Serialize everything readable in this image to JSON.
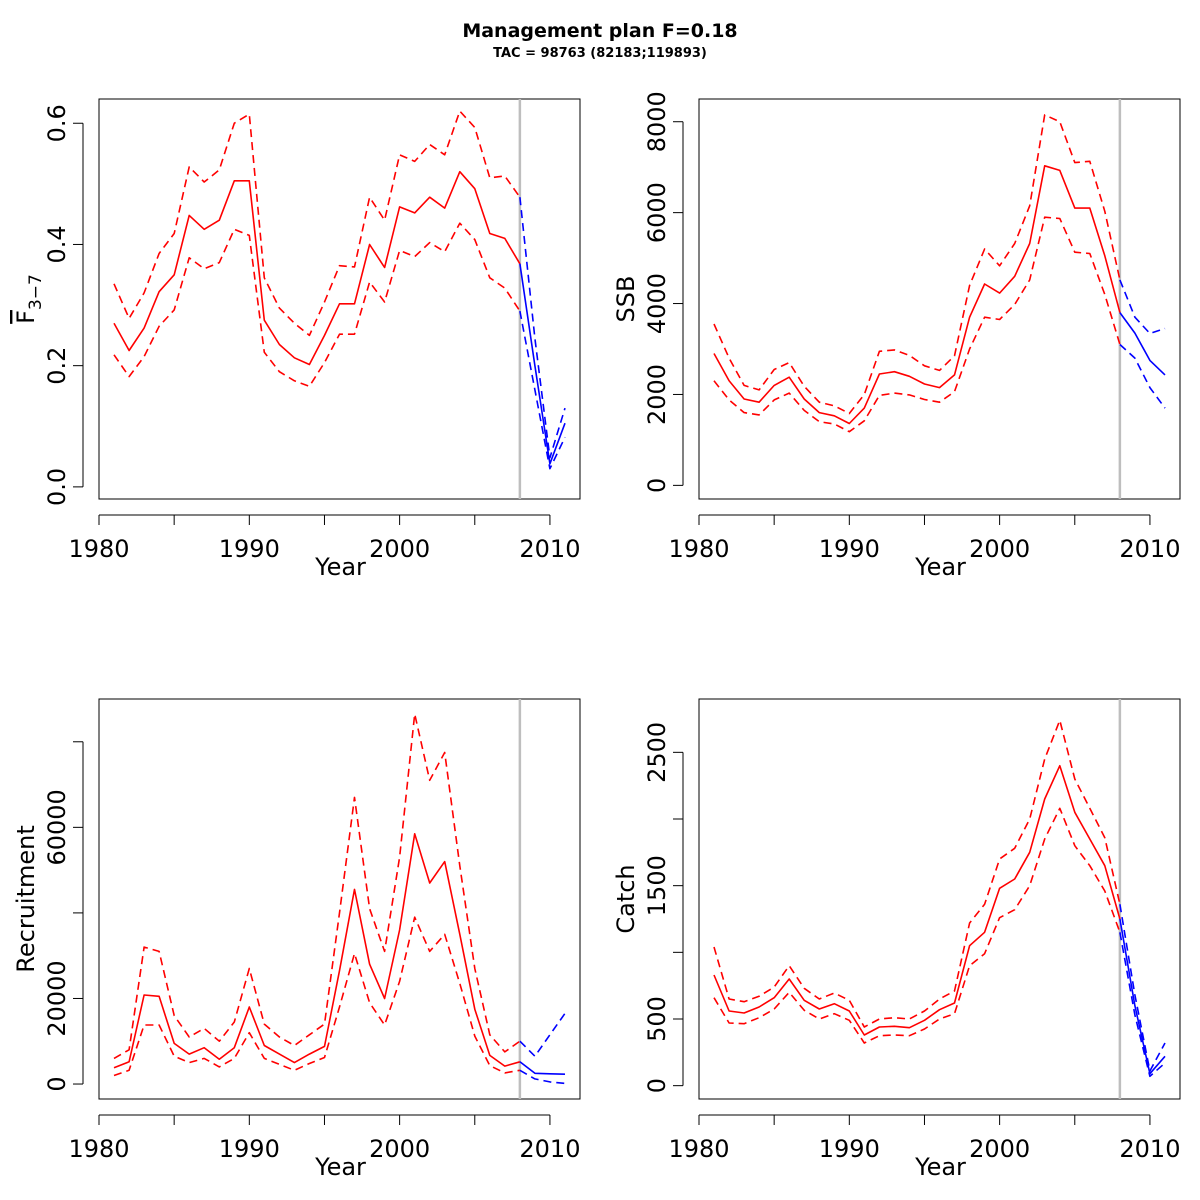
{
  "header": {
    "title": "Management plan F=0.18",
    "subtitle": "TAC = 98763 (82183;119893)"
  },
  "chart_data": [
    {
      "type": "line",
      "ylabel": "F",
      "ylabel_sub": "3−7",
      "xlabel": "Year",
      "xlim": [
        1980,
        2012
      ],
      "ylim": [
        -0.02,
        0.64
      ],
      "yticks": [
        0.0,
        0.2,
        0.4,
        0.6
      ],
      "ytick_labels": [
        "0.0",
        "0.2",
        "0.4",
        "0.6"
      ],
      "xticks": [
        1980,
        1990,
        2000,
        2010
      ],
      "xtick_labels": [
        "1980",
        "1990",
        "2000",
        "2010"
      ],
      "ref_year": 2008,
      "x": [
        1981,
        1982,
        1983,
        1984,
        1985,
        1986,
        1987,
        1988,
        1989,
        1990,
        1991,
        1992,
        1993,
        1994,
        1995,
        1996,
        1997,
        1998,
        1999,
        2000,
        2001,
        2002,
        2003,
        2004,
        2005,
        2006,
        2007,
        2008
      ],
      "series": [
        {
          "role": "estimate",
          "values": [
            0.27,
            0.225,
            0.262,
            0.322,
            0.35,
            0.448,
            0.425,
            0.44,
            0.505,
            0.505,
            0.275,
            0.235,
            0.213,
            0.202,
            0.25,
            0.302,
            0.302,
            0.4,
            0.362,
            0.462,
            0.452,
            0.478,
            0.46,
            0.52,
            0.492,
            0.418,
            0.41,
            0.368
          ]
        },
        {
          "role": "upper",
          "values": [
            0.335,
            0.278,
            0.32,
            0.385,
            0.418,
            0.528,
            0.503,
            0.523,
            0.6,
            0.615,
            0.345,
            0.295,
            0.27,
            0.25,
            0.305,
            0.365,
            0.363,
            0.478,
            0.44,
            0.548,
            0.537,
            0.565,
            0.548,
            0.62,
            0.593,
            0.51,
            0.513,
            0.478
          ]
        },
        {
          "role": "lower",
          "values": [
            0.218,
            0.182,
            0.215,
            0.265,
            0.292,
            0.378,
            0.36,
            0.37,
            0.425,
            0.415,
            0.222,
            0.19,
            0.175,
            0.166,
            0.205,
            0.252,
            0.252,
            0.338,
            0.305,
            0.39,
            0.38,
            0.403,
            0.388,
            0.435,
            0.408,
            0.345,
            0.328,
            0.29
          ]
        }
      ],
      "forecast_x": [
        2008,
        2009,
        2010,
        2011
      ],
      "forecast": [
        {
          "role": "estimate",
          "values": [
            0.368,
            0.2,
            0.038,
            0.105
          ]
        },
        {
          "role": "upper",
          "values": [
            0.478,
            0.245,
            0.048,
            0.13
          ]
        },
        {
          "role": "lower",
          "values": [
            0.29,
            0.16,
            0.03,
            0.082
          ]
        }
      ]
    },
    {
      "type": "line",
      "ylabel": "SSB",
      "xlabel": "Year",
      "xlim": [
        1980,
        2012
      ],
      "ylim": [
        -300,
        8500
      ],
      "yticks": [
        0,
        2000,
        4000,
        6000,
        8000
      ],
      "ytick_labels": [
        "0",
        "2000",
        "4000",
        "6000",
        "8000"
      ],
      "xticks": [
        1980,
        1990,
        2000,
        2010
      ],
      "xtick_labels": [
        "1980",
        "1990",
        "2000",
        "2010"
      ],
      "ref_year": 2008,
      "x": [
        1981,
        1982,
        1983,
        1984,
        1985,
        1986,
        1987,
        1988,
        1989,
        1990,
        1991,
        1992,
        1993,
        1994,
        1995,
        1996,
        1997,
        1998,
        1999,
        2000,
        2001,
        2002,
        2003,
        2004,
        2005,
        2006,
        2007,
        2008
      ],
      "series": [
        {
          "role": "estimate",
          "values": [
            2900,
            2300,
            1900,
            1830,
            2200,
            2380,
            1900,
            1600,
            1530,
            1360,
            1700,
            2450,
            2500,
            2400,
            2230,
            2150,
            2430,
            3700,
            4430,
            4230,
            4600,
            5320,
            7030,
            6930,
            6100,
            6100,
            5050,
            3800
          ]
        },
        {
          "role": "upper",
          "values": [
            3550,
            2800,
            2200,
            2100,
            2550,
            2700,
            2180,
            1830,
            1750,
            1580,
            2000,
            2950,
            2980,
            2860,
            2630,
            2530,
            2850,
            4400,
            5200,
            4830,
            5320,
            6150,
            8150,
            8000,
            7100,
            7130,
            6030,
            4520
          ]
        },
        {
          "role": "lower",
          "values": [
            2300,
            1880,
            1600,
            1550,
            1880,
            2030,
            1650,
            1400,
            1350,
            1180,
            1420,
            1980,
            2030,
            1990,
            1890,
            1830,
            2060,
            3000,
            3700,
            3650,
            3980,
            4520,
            5900,
            5870,
            5130,
            5100,
            4200,
            3100
          ]
        }
      ],
      "forecast_x": [
        2008,
        2009,
        2010,
        2011
      ],
      "forecast": [
        {
          "role": "estimate",
          "values": [
            3800,
            3350,
            2750,
            2430
          ]
        },
        {
          "role": "upper",
          "values": [
            4520,
            3700,
            3340,
            3450
          ]
        },
        {
          "role": "lower",
          "values": [
            3100,
            2800,
            2150,
            1700
          ]
        }
      ]
    },
    {
      "type": "line",
      "ylabel": "Recruitment",
      "xlabel": "Year",
      "xlim": [
        1980,
        2012
      ],
      "ylim": [
        -3500,
        90000
      ],
      "yticks": [
        0,
        20000,
        40000,
        60000,
        80000
      ],
      "ytick_labels": [
        "0",
        "20000",
        "",
        "60000",
        ""
      ],
      "xticks": [
        1980,
        1990,
        2000,
        2010
      ],
      "xtick_labels": [
        "1980",
        "1990",
        "2000",
        "2010"
      ],
      "ref_year": 2008,
      "x": [
        1981,
        1982,
        1983,
        1984,
        1985,
        1986,
        1987,
        1988,
        1989,
        1990,
        1991,
        1992,
        1993,
        1994,
        1995,
        1996,
        1997,
        1998,
        1999,
        2000,
        2001,
        2002,
        2003,
        2004,
        2005,
        2006,
        2007,
        2008
      ],
      "series": [
        {
          "role": "estimate",
          "values": [
            3800,
            5200,
            20800,
            20500,
            9500,
            7000,
            8500,
            5800,
            8500,
            18000,
            9000,
            7000,
            5000,
            7000,
            8800,
            26500,
            45500,
            28000,
            20000,
            36000,
            58500,
            47000,
            52000,
            35000,
            17500,
            6700,
            4200,
            5200
          ]
        },
        {
          "role": "upper",
          "values": [
            6000,
            8000,
            32000,
            31000,
            16000,
            11000,
            13000,
            10000,
            14500,
            27000,
            14000,
            11000,
            9000,
            11500,
            14000,
            40000,
            67000,
            41000,
            31000,
            53000,
            86500,
            71000,
            77500,
            51000,
            27000,
            11500,
            7500,
            10000
          ]
        },
        {
          "role": "lower",
          "values": [
            2000,
            3200,
            13800,
            13800,
            6500,
            5000,
            6000,
            4000,
            6000,
            12000,
            6000,
            4600,
            3200,
            4800,
            6200,
            18000,
            30500,
            19000,
            13800,
            24000,
            39000,
            31000,
            35000,
            23500,
            11200,
            4300,
            2600,
            3200
          ]
        }
      ],
      "forecast_x": [
        2008,
        2009,
        2010,
        2011
      ],
      "forecast": [
        {
          "role": "estimate",
          "values": [
            5200,
            2500,
            2400,
            2300
          ]
        },
        {
          "role": "upper",
          "values": [
            10000,
            6500,
            11500,
            16500
          ]
        },
        {
          "role": "lower",
          "values": [
            3200,
            1200,
            500,
            150
          ]
        }
      ]
    },
    {
      "type": "line",
      "ylabel": "Catch",
      "xlabel": "Year",
      "xlim": [
        1980,
        2012
      ],
      "ylim": [
        -100,
        2900
      ],
      "yticks": [
        0,
        500,
        1000,
        1500,
        2000,
        2500
      ],
      "ytick_labels": [
        "0",
        "500",
        "",
        "1500",
        "",
        "2500"
      ],
      "xticks": [
        1980,
        1990,
        2000,
        2010
      ],
      "xtick_labels": [
        "1980",
        "1990",
        "2000",
        "2010"
      ],
      "ref_year": 2008,
      "x": [
        1981,
        1982,
        1983,
        1984,
        1985,
        1986,
        1987,
        1988,
        1989,
        1990,
        1991,
        1992,
        1993,
        1994,
        1995,
        1996,
        1997,
        1998,
        1999,
        2000,
        2001,
        2002,
        2003,
        2004,
        2005,
        2006,
        2007,
        2008
      ],
      "series": [
        {
          "role": "estimate",
          "values": [
            830,
            560,
            545,
            590,
            660,
            800,
            640,
            575,
            615,
            560,
            380,
            440,
            445,
            435,
            490,
            570,
            620,
            1050,
            1150,
            1480,
            1550,
            1750,
            2150,
            2400,
            2050,
            1850,
            1650,
            1250
          ]
        },
        {
          "role": "upper",
          "values": [
            1040,
            650,
            630,
            670,
            740,
            900,
            730,
            650,
            695,
            640,
            440,
            500,
            510,
            500,
            560,
            650,
            710,
            1220,
            1360,
            1700,
            1780,
            2000,
            2450,
            2740,
            2300,
            2080,
            1860,
            1360
          ]
        },
        {
          "role": "lower",
          "values": [
            660,
            470,
            465,
            510,
            575,
            700,
            565,
            500,
            540,
            490,
            320,
            375,
            380,
            375,
            425,
            500,
            540,
            900,
            990,
            1260,
            1320,
            1500,
            1850,
            2080,
            1800,
            1650,
            1460,
            1150
          ]
        }
      ],
      "forecast_x": [
        2008,
        2009,
        2010,
        2011
      ],
      "forecast": [
        {
          "role": "estimate",
          "values": [
            1250,
            600,
            90,
            220
          ]
        },
        {
          "role": "upper",
          "values": [
            1360,
            680,
            110,
            320
          ]
        },
        {
          "role": "lower",
          "values": [
            1150,
            530,
            70,
            170
          ]
        }
      ]
    }
  ],
  "colors": {
    "historical": "#ff0000",
    "forecast": "#0000ff",
    "ref_line": "#bebebe",
    "axis": "#000000"
  }
}
